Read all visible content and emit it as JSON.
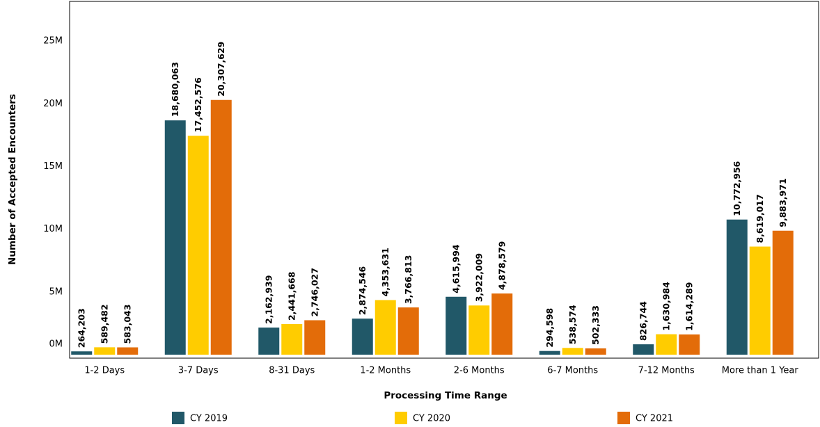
{
  "chart_data": {
    "type": "bar",
    "x_label": "Processing Time Range",
    "y_label": "Number of Accepted Encounters",
    "categories": [
      "1-2 Days",
      "3-7 Days",
      "8-31 Days",
      "1-2 Months",
      "2-6 Months",
      "6-7 Months",
      "7-12 Months",
      "More than 1 Year"
    ],
    "series": [
      {
        "name": "CY 2019",
        "color": "#215868",
        "values": [
          264203,
          18680063,
          2162939,
          2874546,
          4615994,
          294598,
          826744,
          10772956
        ],
        "value_labels": [
          "264,203",
          "18,680,063",
          "2,162,939",
          "2,874,546",
          "4,615,994",
          "294,598",
          "826,744",
          "10,772,956"
        ]
      },
      {
        "name": "CY 2020",
        "color": "#ffcc00",
        "values": [
          589482,
          17452576,
          2441668,
          4353631,
          3922009,
          538574,
          1630984,
          8619017
        ],
        "value_labels": [
          "589,482",
          "17,452,576",
          "2,441,668",
          "4,353,631",
          "3,922,009",
          "538,574",
          "1,630,984",
          "8,619,017"
        ]
      },
      {
        "name": "CY 2021",
        "color": "#e36c09",
        "values": [
          583043,
          20307629,
          2746027,
          3766813,
          4878579,
          502333,
          1614289,
          9883971
        ],
        "value_labels": [
          "583,043",
          "20,307,629",
          "2,746,027",
          "3,766,813",
          "4,878,579",
          "502,333",
          "1,614,289",
          "9,883,971"
        ]
      }
    ],
    "ylim": [
      0,
      28000000
    ],
    "yticks": [
      {
        "value": 0,
        "label": "0M"
      },
      {
        "value": 5000000,
        "label": "5M"
      },
      {
        "value": 10000000,
        "label": "10M"
      },
      {
        "value": 15000000,
        "label": "15M"
      },
      {
        "value": 20000000,
        "label": "20M"
      },
      {
        "value": 25000000,
        "label": "25M"
      }
    ],
    "grid": false,
    "legend": "bottom"
  }
}
